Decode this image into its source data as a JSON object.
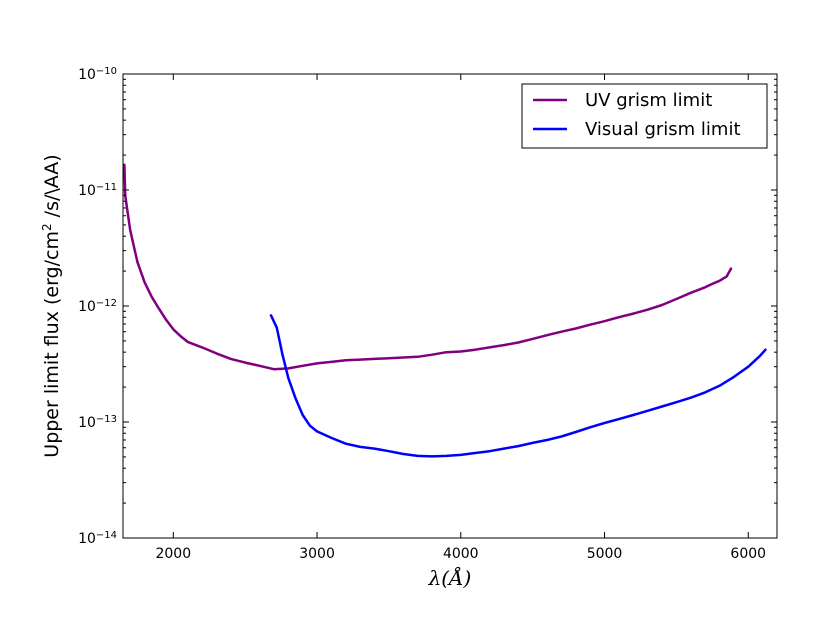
{
  "chart_data": {
    "type": "line",
    "title": "",
    "xlabel": "λ(Å)",
    "ylabel": "Upper limit flux (erg/cm² /s/\\AA)",
    "ylabel_parts": {
      "before": "Upper limit flux (erg/cm",
      "sup": "2",
      "after": " /s/\\AA)"
    },
    "xlim": [
      1650,
      6200
    ],
    "ylim": [
      1e-14,
      1e-10
    ],
    "yscale": "log",
    "grid": false,
    "legend_position": "top-right",
    "xticks": [
      {
        "value": 2000,
        "label": "2000"
      },
      {
        "value": 3000,
        "label": "3000"
      },
      {
        "value": 4000,
        "label": "4000"
      },
      {
        "value": 5000,
        "label": "5000"
      },
      {
        "value": 6000,
        "label": "6000"
      }
    ],
    "yticks": [
      {
        "value": 1e-14,
        "base": "10",
        "exp": "−14"
      },
      {
        "value": 1e-13,
        "base": "10",
        "exp": "−13"
      },
      {
        "value": 1e-12,
        "base": "10",
        "exp": "−12"
      },
      {
        "value": 1e-11,
        "base": "10",
        "exp": "−11"
      },
      {
        "value": 1e-10,
        "base": "10",
        "exp": "−10"
      }
    ],
    "series": [
      {
        "name": "UV grism limit",
        "color": "#800080",
        "points": [
          [
            1660,
            1.65e-11
          ],
          [
            1665,
            9e-12
          ],
          [
            1700,
            4.5e-12
          ],
          [
            1750,
            2.4e-12
          ],
          [
            1800,
            1.6e-12
          ],
          [
            1850,
            1.2e-12
          ],
          [
            1900,
            9.5e-13
          ],
          [
            1950,
            7.6e-13
          ],
          [
            2000,
            6.3e-13
          ],
          [
            2050,
            5.5e-13
          ],
          [
            2100,
            4.9e-13
          ],
          [
            2200,
            4.4e-13
          ],
          [
            2300,
            3.9e-13
          ],
          [
            2400,
            3.5e-13
          ],
          [
            2500,
            3.25e-13
          ],
          [
            2600,
            3.05e-13
          ],
          [
            2700,
            2.85e-13
          ],
          [
            2800,
            2.9e-13
          ],
          [
            2900,
            3.05e-13
          ],
          [
            3000,
            3.2e-13
          ],
          [
            3100,
            3.3e-13
          ],
          [
            3200,
            3.4e-13
          ],
          [
            3300,
            3.45e-13
          ],
          [
            3400,
            3.5e-13
          ],
          [
            3500,
            3.55e-13
          ],
          [
            3600,
            3.6e-13
          ],
          [
            3700,
            3.65e-13
          ],
          [
            3800,
            3.8e-13
          ],
          [
            3900,
            4e-13
          ],
          [
            4000,
            4.05e-13
          ],
          [
            4100,
            4.2e-13
          ],
          [
            4200,
            4.4e-13
          ],
          [
            4300,
            4.6e-13
          ],
          [
            4400,
            4.85e-13
          ],
          [
            4500,
            5.2e-13
          ],
          [
            4600,
            5.6e-13
          ],
          [
            4700,
            6e-13
          ],
          [
            4800,
            6.4e-13
          ],
          [
            4900,
            6.9e-13
          ],
          [
            5000,
            7.4e-13
          ],
          [
            5100,
            8e-13
          ],
          [
            5200,
            8.6e-13
          ],
          [
            5300,
            9.3e-13
          ],
          [
            5400,
            1.02e-12
          ],
          [
            5500,
            1.15e-12
          ],
          [
            5600,
            1.3e-12
          ],
          [
            5700,
            1.45e-12
          ],
          [
            5750,
            1.55e-12
          ],
          [
            5800,
            1.65e-12
          ],
          [
            5850,
            1.8e-12
          ],
          [
            5880,
            2.1e-12
          ]
        ]
      },
      {
        "name": "Visual grism limit",
        "color": "#0000ff",
        "points": [
          [
            2680,
            8.3e-13
          ],
          [
            2720,
            6.5e-13
          ],
          [
            2760,
            3.8e-13
          ],
          [
            2800,
            2.4e-13
          ],
          [
            2850,
            1.6e-13
          ],
          [
            2900,
            1.15e-13
          ],
          [
            2950,
            9.3e-14
          ],
          [
            3000,
            8.3e-14
          ],
          [
            3100,
            7.3e-14
          ],
          [
            3200,
            6.5e-14
          ],
          [
            3300,
            6.1e-14
          ],
          [
            3400,
            5.9e-14
          ],
          [
            3500,
            5.6e-14
          ],
          [
            3600,
            5.3e-14
          ],
          [
            3700,
            5.1e-14
          ],
          [
            3800,
            5.05e-14
          ],
          [
            3900,
            5.1e-14
          ],
          [
            4000,
            5.2e-14
          ],
          [
            4100,
            5.4e-14
          ],
          [
            4200,
            5.6e-14
          ],
          [
            4300,
            5.9e-14
          ],
          [
            4400,
            6.2e-14
          ],
          [
            4500,
            6.6e-14
          ],
          [
            4600,
            7e-14
          ],
          [
            4700,
            7.5e-14
          ],
          [
            4800,
            8.2e-14
          ],
          [
            4900,
            9e-14
          ],
          [
            5000,
            9.8e-14
          ],
          [
            5100,
            1.06e-13
          ],
          [
            5200,
            1.15e-13
          ],
          [
            5300,
            1.25e-13
          ],
          [
            5400,
            1.36e-13
          ],
          [
            5500,
            1.48e-13
          ],
          [
            5600,
            1.62e-13
          ],
          [
            5700,
            1.8e-13
          ],
          [
            5800,
            2.05e-13
          ],
          [
            5900,
            2.45e-13
          ],
          [
            6000,
            3e-13
          ],
          [
            6080,
            3.7e-13
          ],
          [
            6120,
            4.2e-13
          ]
        ]
      }
    ]
  }
}
